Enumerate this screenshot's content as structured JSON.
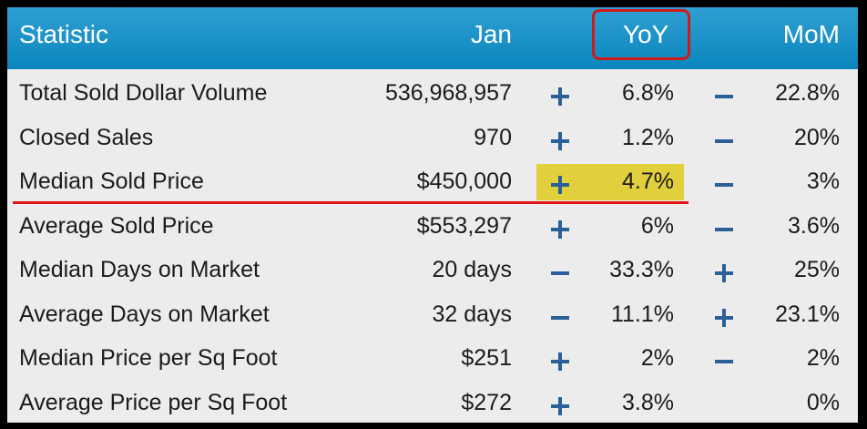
{
  "header": {
    "statistic": "Statistic",
    "jan": "Jan",
    "yoy": "YoY",
    "mom": "MoM"
  },
  "rows": [
    {
      "label": "Total Sold Dollar Volume",
      "jan": "536,968,957",
      "yoy_sign": "plus",
      "yoy": "6.8%",
      "mom_sign": "minus",
      "mom": "22.8%"
    },
    {
      "label": "Closed Sales",
      "jan": "970",
      "yoy_sign": "plus",
      "yoy": "1.2%",
      "mom_sign": "minus",
      "mom": "20%"
    },
    {
      "label": "Median Sold Price",
      "jan": "$450,000",
      "yoy_sign": "plus",
      "yoy": "4.7%",
      "mom_sign": "minus",
      "mom": "3%"
    },
    {
      "label": "Average Sold Price",
      "jan": "$553,297",
      "yoy_sign": "plus",
      "yoy": "6%",
      "mom_sign": "minus",
      "mom": "3.6%"
    },
    {
      "label": "Median Days on Market",
      "jan": "20 days",
      "yoy_sign": "minus",
      "yoy": "33.3%",
      "mom_sign": "plus",
      "mom": "25%"
    },
    {
      "label": "Average Days on Market",
      "jan": "32 days",
      "yoy_sign": "minus",
      "yoy": "11.1%",
      "mom_sign": "plus",
      "mom": "23.1%"
    },
    {
      "label": "Median Price per Sq Foot",
      "jan": "$251",
      "yoy_sign": "plus",
      "yoy": "2%",
      "mom_sign": "minus",
      "mom": "2%"
    },
    {
      "label": "Average Price per Sq Foot",
      "jan": "$272",
      "yoy_sign": "plus",
      "yoy": "3.8%",
      "mom_sign": "",
      "mom": "0%"
    }
  ],
  "colors": {
    "header_bg": "#0a86bd",
    "sign_color": "#2a5f98",
    "highlight": "#e2cf3c",
    "annotation_red": "#d01a1a"
  }
}
